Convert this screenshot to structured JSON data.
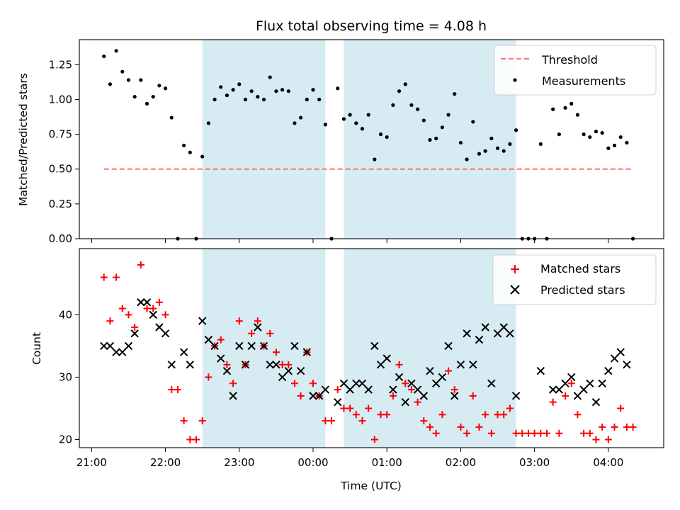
{
  "chart_data": [
    {
      "type": "scatter",
      "title": "Flux total observing time = 4.08 h",
      "xlabel": "",
      "ylabel": "Matched/Predicted stars",
      "ylim": [
        0,
        1.43
      ],
      "yticks": [
        "0.00",
        "0.25",
        "0.50",
        "0.75",
        "1.00",
        "1.25"
      ],
      "shaded_intervals": [
        [
          "22:30",
          "00:10"
        ],
        [
          "00:25",
          "02:45"
        ]
      ],
      "legend": {
        "placement": "top-right",
        "entries": [
          "Threshold",
          "Measurements"
        ]
      },
      "threshold": {
        "name": "Threshold",
        "value": 0.5,
        "x_start": "21:10",
        "x_end": "04:20",
        "color": "#ff7070",
        "style": "dashed"
      },
      "series": [
        {
          "name": "Measurements",
          "color": "#000000",
          "points": [
            [
              "21:10",
              1.31
            ],
            [
              "21:15",
              1.11
            ],
            [
              "21:20",
              1.35
            ],
            [
              "21:25",
              1.2
            ],
            [
              "21:30",
              1.14
            ],
            [
              "21:35",
              1.02
            ],
            [
              "21:40",
              1.14
            ],
            [
              "21:45",
              0.97
            ],
            [
              "21:50",
              1.02
            ],
            [
              "21:55",
              1.1
            ],
            [
              "22:00",
              1.08
            ],
            [
              "22:05",
              0.87
            ],
            [
              "22:10",
              0.0
            ],
            [
              "22:15",
              0.67
            ],
            [
              "22:20",
              0.62
            ],
            [
              "22:25",
              0.0
            ],
            [
              "22:30",
              0.59
            ],
            [
              "22:35",
              0.83
            ],
            [
              "22:40",
              1.0
            ],
            [
              "22:45",
              1.09
            ],
            [
              "22:50",
              1.03
            ],
            [
              "22:55",
              1.07
            ],
            [
              "23:00",
              1.11
            ],
            [
              "23:05",
              1.0
            ],
            [
              "23:10",
              1.06
            ],
            [
              "23:15",
              1.02
            ],
            [
              "23:20",
              1.0
            ],
            [
              "23:25",
              1.16
            ],
            [
              "23:30",
              1.06
            ],
            [
              "23:35",
              1.07
            ],
            [
              "23:40",
              1.06
            ],
            [
              "23:45",
              0.83
            ],
            [
              "23:50",
              0.87
            ],
            [
              "23:55",
              1.0
            ],
            [
              "00:00",
              1.07
            ],
            [
              "00:05",
              1.0
            ],
            [
              "00:10",
              0.82
            ],
            [
              "00:15",
              0.0
            ],
            [
              "00:20",
              1.08
            ],
            [
              "00:25",
              0.86
            ],
            [
              "00:30",
              0.89
            ],
            [
              "00:35",
              0.83
            ],
            [
              "00:40",
              0.79
            ],
            [
              "00:45",
              0.89
            ],
            [
              "00:50",
              0.57
            ],
            [
              "00:55",
              0.75
            ],
            [
              "01:00",
              0.73
            ],
            [
              "01:05",
              0.96
            ],
            [
              "01:10",
              1.06
            ],
            [
              "01:15",
              1.11
            ],
            [
              "01:20",
              0.96
            ],
            [
              "01:25",
              0.93
            ],
            [
              "01:30",
              0.85
            ],
            [
              "01:35",
              0.71
            ],
            [
              "01:40",
              0.72
            ],
            [
              "01:45",
              0.8
            ],
            [
              "01:50",
              0.89
            ],
            [
              "01:55",
              1.04
            ],
            [
              "02:00",
              0.69
            ],
            [
              "02:05",
              0.57
            ],
            [
              "02:10",
              0.84
            ],
            [
              "02:15",
              0.61
            ],
            [
              "02:20",
              0.63
            ],
            [
              "02:25",
              0.72
            ],
            [
              "02:30",
              0.65
            ],
            [
              "02:35",
              0.63
            ],
            [
              "02:40",
              0.68
            ],
            [
              "02:45",
              0.78
            ],
            [
              "02:50",
              0.0
            ],
            [
              "02:55",
              0.0
            ],
            [
              "03:00",
              0.0
            ],
            [
              "03:05",
              0.68
            ],
            [
              "03:10",
              0.0
            ],
            [
              "03:15",
              0.93
            ],
            [
              "03:20",
              0.75
            ],
            [
              "03:25",
              0.94
            ],
            [
              "03:30",
              0.97
            ],
            [
              "03:35",
              0.89
            ],
            [
              "03:40",
              0.75
            ],
            [
              "03:45",
              0.73
            ],
            [
              "03:50",
              0.77
            ],
            [
              "03:55",
              0.76
            ],
            [
              "04:00",
              0.65
            ],
            [
              "04:05",
              0.67
            ],
            [
              "04:10",
              0.73
            ],
            [
              "04:15",
              0.69
            ],
            [
              "04:20",
              0.0
            ]
          ]
        }
      ]
    },
    {
      "type": "scatter",
      "title": "",
      "xlabel": "Time (UTC)",
      "ylabel": "Count",
      "ylim": [
        18.7,
        50.6
      ],
      "xlim": [
        "20:50",
        "04:45"
      ],
      "yticks": [
        "20",
        "30",
        "40"
      ],
      "xticks": [
        "21:00",
        "22:00",
        "23:00",
        "00:00",
        "01:00",
        "02:00",
        "03:00",
        "04:00"
      ],
      "shaded_intervals": [
        [
          "22:30",
          "00:10"
        ],
        [
          "00:25",
          "02:45"
        ]
      ],
      "legend": {
        "placement": "top-right",
        "entries": [
          "Matched stars",
          "Predicted stars"
        ]
      },
      "series": [
        {
          "name": "Matched stars",
          "marker": "plus",
          "color": "#ff0000",
          "points": [
            [
              "21:10",
              46
            ],
            [
              "21:15",
              39
            ],
            [
              "21:20",
              46
            ],
            [
              "21:25",
              41
            ],
            [
              "21:30",
              40
            ],
            [
              "21:35",
              38
            ],
            [
              "21:40",
              48
            ],
            [
              "21:45",
              41
            ],
            [
              "21:50",
              41
            ],
            [
              "21:55",
              42
            ],
            [
              "22:00",
              40
            ],
            [
              "22:05",
              28
            ],
            [
              "22:10",
              28
            ],
            [
              "22:15",
              23
            ],
            [
              "22:20",
              20
            ],
            [
              "22:25",
              20
            ],
            [
              "22:30",
              23
            ],
            [
              "22:35",
              30
            ],
            [
              "22:40",
              35
            ],
            [
              "22:45",
              36
            ],
            [
              "22:50",
              32
            ],
            [
              "22:55",
              29
            ],
            [
              "23:00",
              39
            ],
            [
              "23:05",
              32
            ],
            [
              "23:10",
              37
            ],
            [
              "23:15",
              39
            ],
            [
              "23:20",
              35
            ],
            [
              "23:25",
              37
            ],
            [
              "23:30",
              34
            ],
            [
              "23:35",
              32
            ],
            [
              "23:40",
              32
            ],
            [
              "23:45",
              29
            ],
            [
              "23:50",
              27
            ],
            [
              "23:55",
              34
            ],
            [
              "00:00",
              29
            ],
            [
              "00:05",
              27
            ],
            [
              "00:10",
              23
            ],
            [
              "00:15",
              23
            ],
            [
              "00:20",
              28
            ],
            [
              "00:25",
              25
            ],
            [
              "00:30",
              25
            ],
            [
              "00:35",
              24
            ],
            [
              "00:40",
              23
            ],
            [
              "00:45",
              25
            ],
            [
              "00:50",
              20
            ],
            [
              "00:55",
              24
            ],
            [
              "01:00",
              24
            ],
            [
              "01:05",
              27
            ],
            [
              "01:10",
              32
            ],
            [
              "01:15",
              29
            ],
            [
              "01:20",
              28
            ],
            [
              "01:25",
              26
            ],
            [
              "01:30",
              23
            ],
            [
              "01:35",
              22
            ],
            [
              "01:40",
              21
            ],
            [
              "01:45",
              24
            ],
            [
              "01:50",
              31
            ],
            [
              "01:55",
              28
            ],
            [
              "02:00",
              22
            ],
            [
              "02:05",
              21
            ],
            [
              "02:10",
              27
            ],
            [
              "02:15",
              22
            ],
            [
              "02:20",
              24
            ],
            [
              "02:25",
              21
            ],
            [
              "02:30",
              24
            ],
            [
              "02:35",
              24
            ],
            [
              "02:40",
              25
            ],
            [
              "02:45",
              21
            ],
            [
              "02:50",
              21
            ],
            [
              "02:55",
              21
            ],
            [
              "03:00",
              21
            ],
            [
              "03:05",
              21
            ],
            [
              "03:10",
              21
            ],
            [
              "03:15",
              26
            ],
            [
              "03:20",
              21
            ],
            [
              "03:25",
              27
            ],
            [
              "03:30",
              29
            ],
            [
              "03:35",
              24
            ],
            [
              "03:40",
              21
            ],
            [
              "03:45",
              21
            ],
            [
              "03:50",
              20
            ],
            [
              "03:55",
              22
            ],
            [
              "04:00",
              20
            ],
            [
              "04:05",
              22
            ],
            [
              "04:10",
              25
            ],
            [
              "04:15",
              22
            ],
            [
              "04:20",
              22
            ]
          ]
        },
        {
          "name": "Predicted stars",
          "marker": "x",
          "color": "#000000",
          "points": [
            [
              "21:10",
              35
            ],
            [
              "21:15",
              35
            ],
            [
              "21:20",
              34
            ],
            [
              "21:25",
              34
            ],
            [
              "21:30",
              35
            ],
            [
              "21:35",
              37
            ],
            [
              "21:40",
              42
            ],
            [
              "21:45",
              42
            ],
            [
              "21:50",
              40
            ],
            [
              "21:55",
              38
            ],
            [
              "22:00",
              37
            ],
            [
              "22:05",
              32
            ],
            [
              "22:15",
              34
            ],
            [
              "22:20",
              32
            ],
            [
              "22:30",
              39
            ],
            [
              "22:35",
              36
            ],
            [
              "22:40",
              35
            ],
            [
              "22:45",
              33
            ],
            [
              "22:50",
              31
            ],
            [
              "22:55",
              27
            ],
            [
              "23:00",
              35
            ],
            [
              "23:05",
              32
            ],
            [
              "23:10",
              35
            ],
            [
              "23:15",
              38
            ],
            [
              "23:20",
              35
            ],
            [
              "23:25",
              32
            ],
            [
              "23:30",
              32
            ],
            [
              "23:35",
              30
            ],
            [
              "23:40",
              31
            ],
            [
              "23:45",
              35
            ],
            [
              "23:50",
              31
            ],
            [
              "23:55",
              34
            ],
            [
              "00:00",
              27
            ],
            [
              "00:05",
              27
            ],
            [
              "00:10",
              28
            ],
            [
              "00:20",
              26
            ],
            [
              "00:25",
              29
            ],
            [
              "00:30",
              28
            ],
            [
              "00:35",
              29
            ],
            [
              "00:40",
              29
            ],
            [
              "00:45",
              28
            ],
            [
              "00:50",
              35
            ],
            [
              "00:55",
              32
            ],
            [
              "01:00",
              33
            ],
            [
              "01:05",
              28
            ],
            [
              "01:10",
              30
            ],
            [
              "01:15",
              26
            ],
            [
              "01:20",
              29
            ],
            [
              "01:25",
              28
            ],
            [
              "01:30",
              27
            ],
            [
              "01:35",
              31
            ],
            [
              "01:40",
              29
            ],
            [
              "01:45",
              30
            ],
            [
              "01:50",
              35
            ],
            [
              "01:55",
              27
            ],
            [
              "02:00",
              32
            ],
            [
              "02:05",
              37
            ],
            [
              "02:10",
              32
            ],
            [
              "02:15",
              36
            ],
            [
              "02:20",
              38
            ],
            [
              "02:25",
              29
            ],
            [
              "02:30",
              37
            ],
            [
              "02:35",
              38
            ],
            [
              "02:40",
              37
            ],
            [
              "02:45",
              27
            ],
            [
              "03:05",
              31
            ],
            [
              "03:15",
              28
            ],
            [
              "03:20",
              28
            ],
            [
              "03:25",
              29
            ],
            [
              "03:30",
              30
            ],
            [
              "03:35",
              27
            ],
            [
              "03:40",
              28
            ],
            [
              "03:45",
              29
            ],
            [
              "03:50",
              26
            ],
            [
              "03:55",
              29
            ],
            [
              "04:00",
              31
            ],
            [
              "04:05",
              33
            ],
            [
              "04:10",
              34
            ],
            [
              "04:15",
              32
            ]
          ]
        }
      ]
    }
  ],
  "colors": {
    "shade": "#add8e6",
    "threshold": "#ff7070",
    "matched": "#ff0000",
    "predicted": "#000000",
    "measurements": "#000000"
  }
}
